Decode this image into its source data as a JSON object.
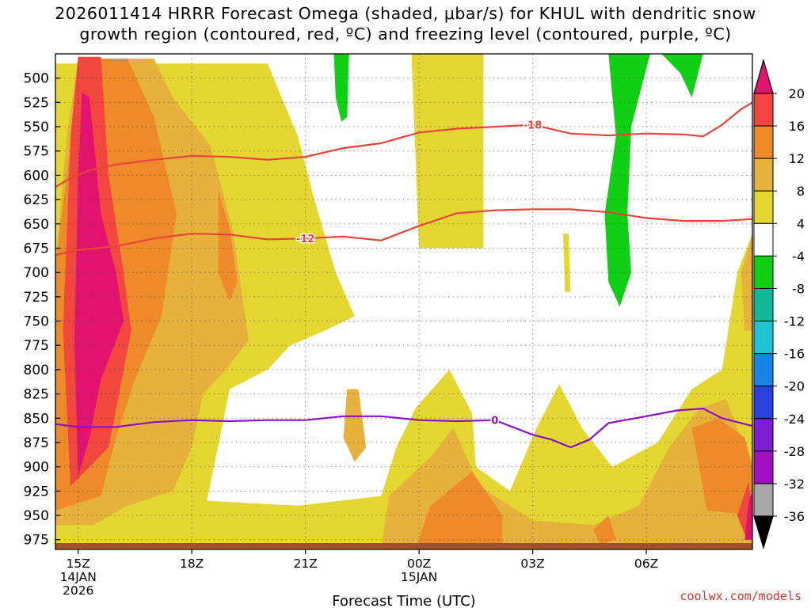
{
  "title": "2026011414 HRRR Forecast Omega (shaded, μbar/s) for KHUL with dendritic snow\ngrowth region (contoured, red, ºC) and freezing level (contoured, purple, ºC)",
  "credit": "coolwx.com/models",
  "chart_data": {
    "type": "heatmap",
    "title": "2026011414 HRRR Forecast Omega (shaded, μbar/s) for KHUL with dendritic snow growth region (contoured, red, ºC) and freezing level (contoured, purple, ºC)",
    "xlabel": "Forecast Time (UTC)",
    "ylabel": "Pressure (hPa)",
    "x_unit": "hours since 2026011414",
    "xlim": [
      0.4,
      18.8
    ],
    "ylim": [
      475,
      985
    ],
    "y_ticks": [
      500,
      525,
      550,
      575,
      600,
      625,
      650,
      675,
      700,
      725,
      750,
      775,
      800,
      825,
      850,
      875,
      900,
      925,
      950,
      975
    ],
    "x_ticks": [
      {
        "x": 1,
        "labels": [
          "15Z",
          "14JAN",
          "2026"
        ]
      },
      {
        "x": 4,
        "labels": [
          "18Z"
        ]
      },
      {
        "x": 7,
        "labels": [
          "21Z"
        ]
      },
      {
        "x": 10,
        "labels": [
          "00Z",
          "15JAN"
        ]
      },
      {
        "x": 13,
        "labels": [
          "03Z"
        ]
      },
      {
        "x": 16,
        "labels": [
          "06Z"
        ]
      }
    ],
    "colorbar": {
      "label": "Omega (μbar/s)",
      "levels": [
        20,
        16,
        12,
        8,
        4,
        -4,
        -8,
        -12,
        -16,
        -20,
        -24,
        -28,
        -32,
        -36
      ],
      "colors": [
        "#e2136e",
        "#f2473e",
        "#ee8a2a",
        "#e7b23b",
        "#e4d732",
        "#ffffff",
        "#10cf14",
        "#13b898",
        "#1fc3d4",
        "#1b84e7",
        "#2a41dc",
        "#7a1ed0",
        "#9e10c0",
        "#a8a8a8",
        "#000000"
      ]
    },
    "omega_regions": [
      {
        "level": 4,
        "color": "#e4d732",
        "points": [
          [
            0.4,
            485
          ],
          [
            6.0,
            485
          ],
          [
            6.8,
            560
          ],
          [
            7.2,
            620
          ],
          [
            7.8,
            700
          ],
          [
            8.3,
            745
          ],
          [
            7.5,
            760
          ],
          [
            6.6,
            775
          ],
          [
            6.0,
            800
          ],
          [
            5.0,
            820
          ],
          [
            4.4,
            935
          ],
          [
            6.8,
            940
          ],
          [
            9.0,
            930
          ],
          [
            9.4,
            880
          ],
          [
            9.9,
            840
          ],
          [
            10.8,
            800
          ],
          [
            11.4,
            845
          ],
          [
            11.5,
            900
          ],
          [
            12.4,
            925
          ],
          [
            13.1,
            860
          ],
          [
            13.7,
            815
          ],
          [
            14.3,
            860
          ],
          [
            15.1,
            900
          ],
          [
            16.3,
            875
          ],
          [
            17.2,
            820
          ],
          [
            18.0,
            800
          ],
          [
            18.4,
            700
          ],
          [
            18.8,
            660
          ],
          [
            18.8,
            985
          ],
          [
            0.4,
            985
          ]
        ]
      },
      {
        "level": 4,
        "color": "#e4d732",
        "points": [
          [
            9.8,
            475
          ],
          [
            11.7,
            475
          ],
          [
            11.7,
            675
          ],
          [
            10.0,
            675
          ]
        ]
      },
      {
        "level": 4,
        "color": "#e4d732",
        "points": [
          [
            11.3,
            476
          ],
          [
            11.7,
            476
          ],
          [
            11.7,
            510
          ],
          [
            11.4,
            510
          ]
        ]
      },
      {
        "level": 4,
        "color": "#e4d732",
        "points": [
          [
            13.8,
            660
          ],
          [
            13.95,
            660
          ],
          [
            14.0,
            720
          ],
          [
            13.85,
            720
          ]
        ]
      },
      {
        "level": 8,
        "color": "#e7b23b",
        "points": [
          [
            0.4,
            690
          ],
          [
            0.7,
            560
          ],
          [
            1.0,
            480
          ],
          [
            3.0,
            480
          ],
          [
            3.5,
            520
          ],
          [
            4.5,
            570
          ],
          [
            5.1,
            660
          ],
          [
            5.5,
            770
          ],
          [
            4.9,
            800
          ],
          [
            4.3,
            825
          ],
          [
            4.0,
            880
          ],
          [
            3.5,
            925
          ],
          [
            2.3,
            940
          ],
          [
            1.4,
            960
          ],
          [
            0.4,
            960
          ]
        ]
      },
      {
        "level": 8,
        "color": "#e7b23b",
        "points": [
          [
            9.0,
            985
          ],
          [
            9.2,
            930
          ],
          [
            10.3,
            890
          ],
          [
            10.9,
            860
          ],
          [
            11.6,
            920
          ],
          [
            13.0,
            955
          ],
          [
            14.6,
            960
          ],
          [
            15.8,
            940
          ],
          [
            16.6,
            880
          ],
          [
            17.4,
            840
          ],
          [
            18.1,
            830
          ],
          [
            18.8,
            900
          ],
          [
            18.8,
            985
          ]
        ]
      },
      {
        "level": 8,
        "color": "#e7b23b",
        "points": [
          [
            8.1,
            820
          ],
          [
            8.4,
            820
          ],
          [
            8.6,
            880
          ],
          [
            8.3,
            895
          ],
          [
            8.0,
            870
          ]
        ]
      },
      {
        "level": 8,
        "color": "#e7b23b",
        "points": [
          [
            18.5,
            700
          ],
          [
            18.8,
            660
          ],
          [
            18.8,
            760
          ],
          [
            18.6,
            760
          ]
        ]
      },
      {
        "level": 12,
        "color": "#ee8a2a",
        "points": [
          [
            0.4,
            690
          ],
          [
            0.8,
            570
          ],
          [
            1.2,
            480
          ],
          [
            2.3,
            480
          ],
          [
            3.0,
            540
          ],
          [
            3.6,
            640
          ],
          [
            3.2,
            745
          ],
          [
            2.5,
            810
          ],
          [
            2.0,
            870
          ],
          [
            1.6,
            930
          ],
          [
            0.4,
            945
          ]
        ]
      },
      {
        "level": 12,
        "color": "#ee8a2a",
        "points": [
          [
            4.7,
            615
          ],
          [
            5.0,
            655
          ],
          [
            5.2,
            710
          ],
          [
            5.0,
            730
          ],
          [
            4.7,
            700
          ]
        ]
      },
      {
        "level": 12,
        "color": "#ee8a2a",
        "points": [
          [
            9.9,
            985
          ],
          [
            10.3,
            940
          ],
          [
            11.4,
            905
          ],
          [
            12.2,
            950
          ],
          [
            12.2,
            985
          ]
        ]
      },
      {
        "level": 12,
        "color": "#ee8a2a",
        "points": [
          [
            17.2,
            860
          ],
          [
            17.9,
            850
          ],
          [
            18.6,
            870
          ],
          [
            18.8,
            900
          ],
          [
            18.8,
            950
          ],
          [
            17.6,
            945
          ]
        ]
      },
      {
        "level": 12,
        "color": "#ee8a2a",
        "points": [
          [
            14.6,
            965
          ],
          [
            15.0,
            950
          ],
          [
            15.2,
            975
          ],
          [
            14.8,
            980
          ]
        ]
      },
      {
        "level": 16,
        "color": "#f2473e",
        "points": [
          [
            0.8,
            920
          ],
          [
            0.6,
            760
          ],
          [
            0.8,
            560
          ],
          [
            1.0,
            478
          ],
          [
            1.6,
            478
          ],
          [
            1.8,
            600
          ],
          [
            2.2,
            700
          ],
          [
            2.4,
            760
          ],
          [
            2.1,
            820
          ],
          [
            1.8,
            880
          ]
        ]
      },
      {
        "level": 16,
        "color": "#f2473e",
        "points": [
          [
            18.4,
            950
          ],
          [
            18.7,
            915
          ],
          [
            18.8,
            950
          ],
          [
            18.6,
            970
          ]
        ]
      },
      {
        "level": 20,
        "color": "#e2136e",
        "points": [
          [
            1.0,
            910
          ],
          [
            0.9,
            770
          ],
          [
            1.0,
            600
          ],
          [
            1.1,
            515
          ],
          [
            1.3,
            520
          ],
          [
            1.6,
            640
          ],
          [
            2.0,
            700
          ],
          [
            2.2,
            750
          ],
          [
            1.6,
            810
          ],
          [
            1.3,
            870
          ]
        ]
      },
      {
        "level": 20,
        "color": "#e2136e",
        "points": [
          [
            18.7,
            935
          ],
          [
            18.8,
            925
          ],
          [
            18.8,
            975
          ],
          [
            18.6,
            975
          ]
        ]
      },
      {
        "level": -4,
        "color": "#10cf14",
        "points": [
          [
            7.75,
            475
          ],
          [
            8.15,
            475
          ],
          [
            8.1,
            540
          ],
          [
            7.95,
            545
          ],
          [
            7.8,
            520
          ]
        ]
      },
      {
        "level": -4,
        "color": "#10cf14",
        "points": [
          [
            15.0,
            475
          ],
          [
            16.1,
            475
          ],
          [
            15.6,
            550
          ],
          [
            15.5,
            640
          ],
          [
            15.6,
            700
          ],
          [
            15.3,
            735
          ],
          [
            15.0,
            710
          ],
          [
            14.9,
            640
          ],
          [
            15.2,
            560
          ]
        ]
      },
      {
        "level": -4,
        "color": "#10cf14",
        "points": [
          [
            16.4,
            475
          ],
          [
            17.5,
            475
          ],
          [
            17.2,
            520
          ],
          [
            16.9,
            495
          ]
        ]
      }
    ],
    "contours": [
      {
        "label": "-18",
        "color": "#e8443a",
        "x": [
          0.4,
          0.8,
          1.3,
          2.0,
          3.0,
          4.0,
          5.0,
          6.0,
          7.0,
          8.0,
          9.0,
          10.0,
          11.0,
          12.0,
          13.0,
          14.0,
          15.0,
          16.0,
          17.0,
          17.5,
          18.0,
          18.5,
          18.8
        ],
        "y": [
          612,
          603,
          595,
          589,
          584,
          580,
          581,
          584,
          581,
          572,
          567,
          556,
          552,
          550,
          548,
          557,
          559,
          557,
          558,
          560,
          548,
          532,
          525
        ],
        "label_x": 13.0
      },
      {
        "label": "-12",
        "color": "#e8443a",
        "x": [
          0.4,
          1.0,
          2.0,
          3.0,
          4.0,
          5.0,
          6.0,
          7.0,
          8.0,
          9.0,
          10.0,
          11.0,
          12.0,
          13.0,
          14.0,
          15.0,
          16.0,
          17.0,
          18.0,
          18.8
        ],
        "y": [
          682,
          677,
          673,
          665,
          660,
          661,
          666,
          665,
          663,
          667,
          652,
          639,
          636,
          635,
          635,
          638,
          644,
          647,
          647,
          645
        ],
        "label_x": 7.0
      },
      {
        "label": "0",
        "color": "#8c10c8",
        "x": [
          0.4,
          1.0,
          2.0,
          3.0,
          4.0,
          5.0,
          6.0,
          7.0,
          8.0,
          9.0,
          10.0,
          11.0,
          12.0,
          13.0,
          13.5,
          14.0,
          14.5,
          15.0,
          16.0,
          16.8,
          17.5,
          18.0,
          18.8
        ],
        "y": [
          856,
          859,
          859,
          854,
          852,
          853,
          852,
          852,
          848,
          848,
          852,
          853,
          852,
          867,
          872,
          880,
          872,
          855,
          848,
          842,
          840,
          850,
          858
        ],
        "label_x": 12.0
      }
    ]
  }
}
